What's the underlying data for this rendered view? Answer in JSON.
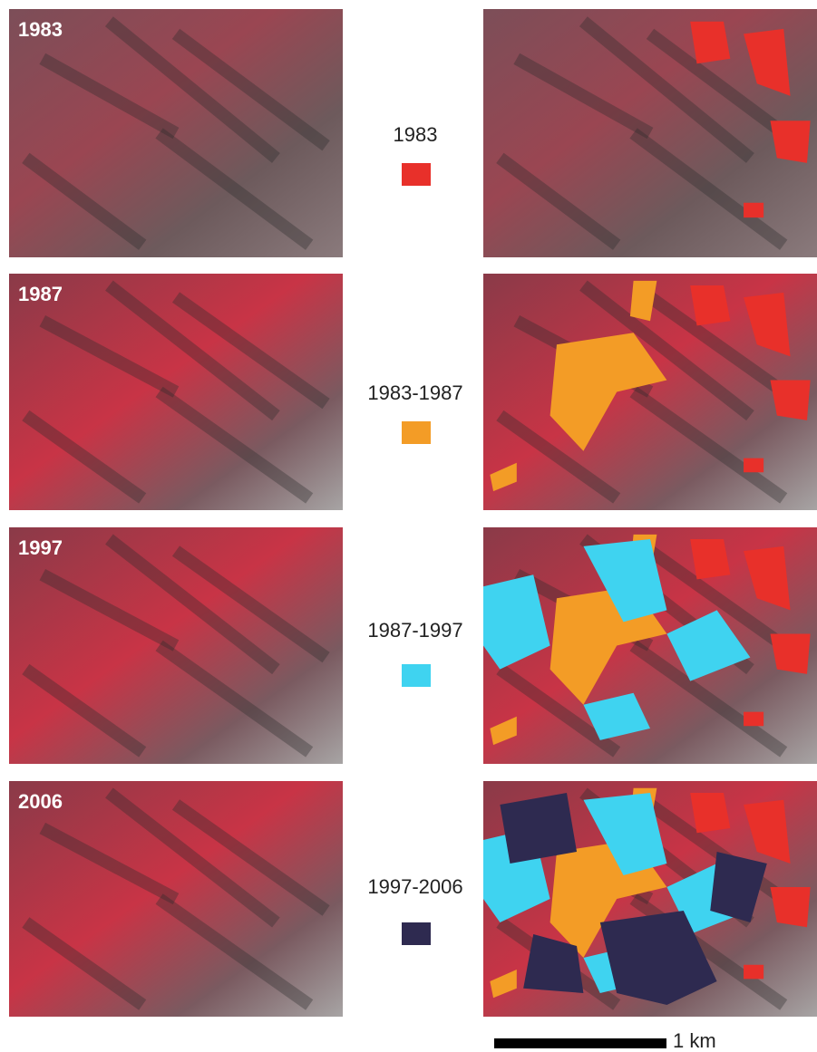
{
  "panels": [
    {
      "year": "1983"
    },
    {
      "year": "1987"
    },
    {
      "year": "1997"
    },
    {
      "year": "2006"
    }
  ],
  "legend": [
    {
      "label": "1983",
      "color": "#e8302a"
    },
    {
      "label": "1983-1987",
      "color": "#f39c26"
    },
    {
      "label": "1987-1997",
      "color": "#3fd3f0"
    },
    {
      "label": "1997-2006",
      "color": "#2e2a50"
    }
  ],
  "scale_bar": {
    "label": "1 km"
  }
}
